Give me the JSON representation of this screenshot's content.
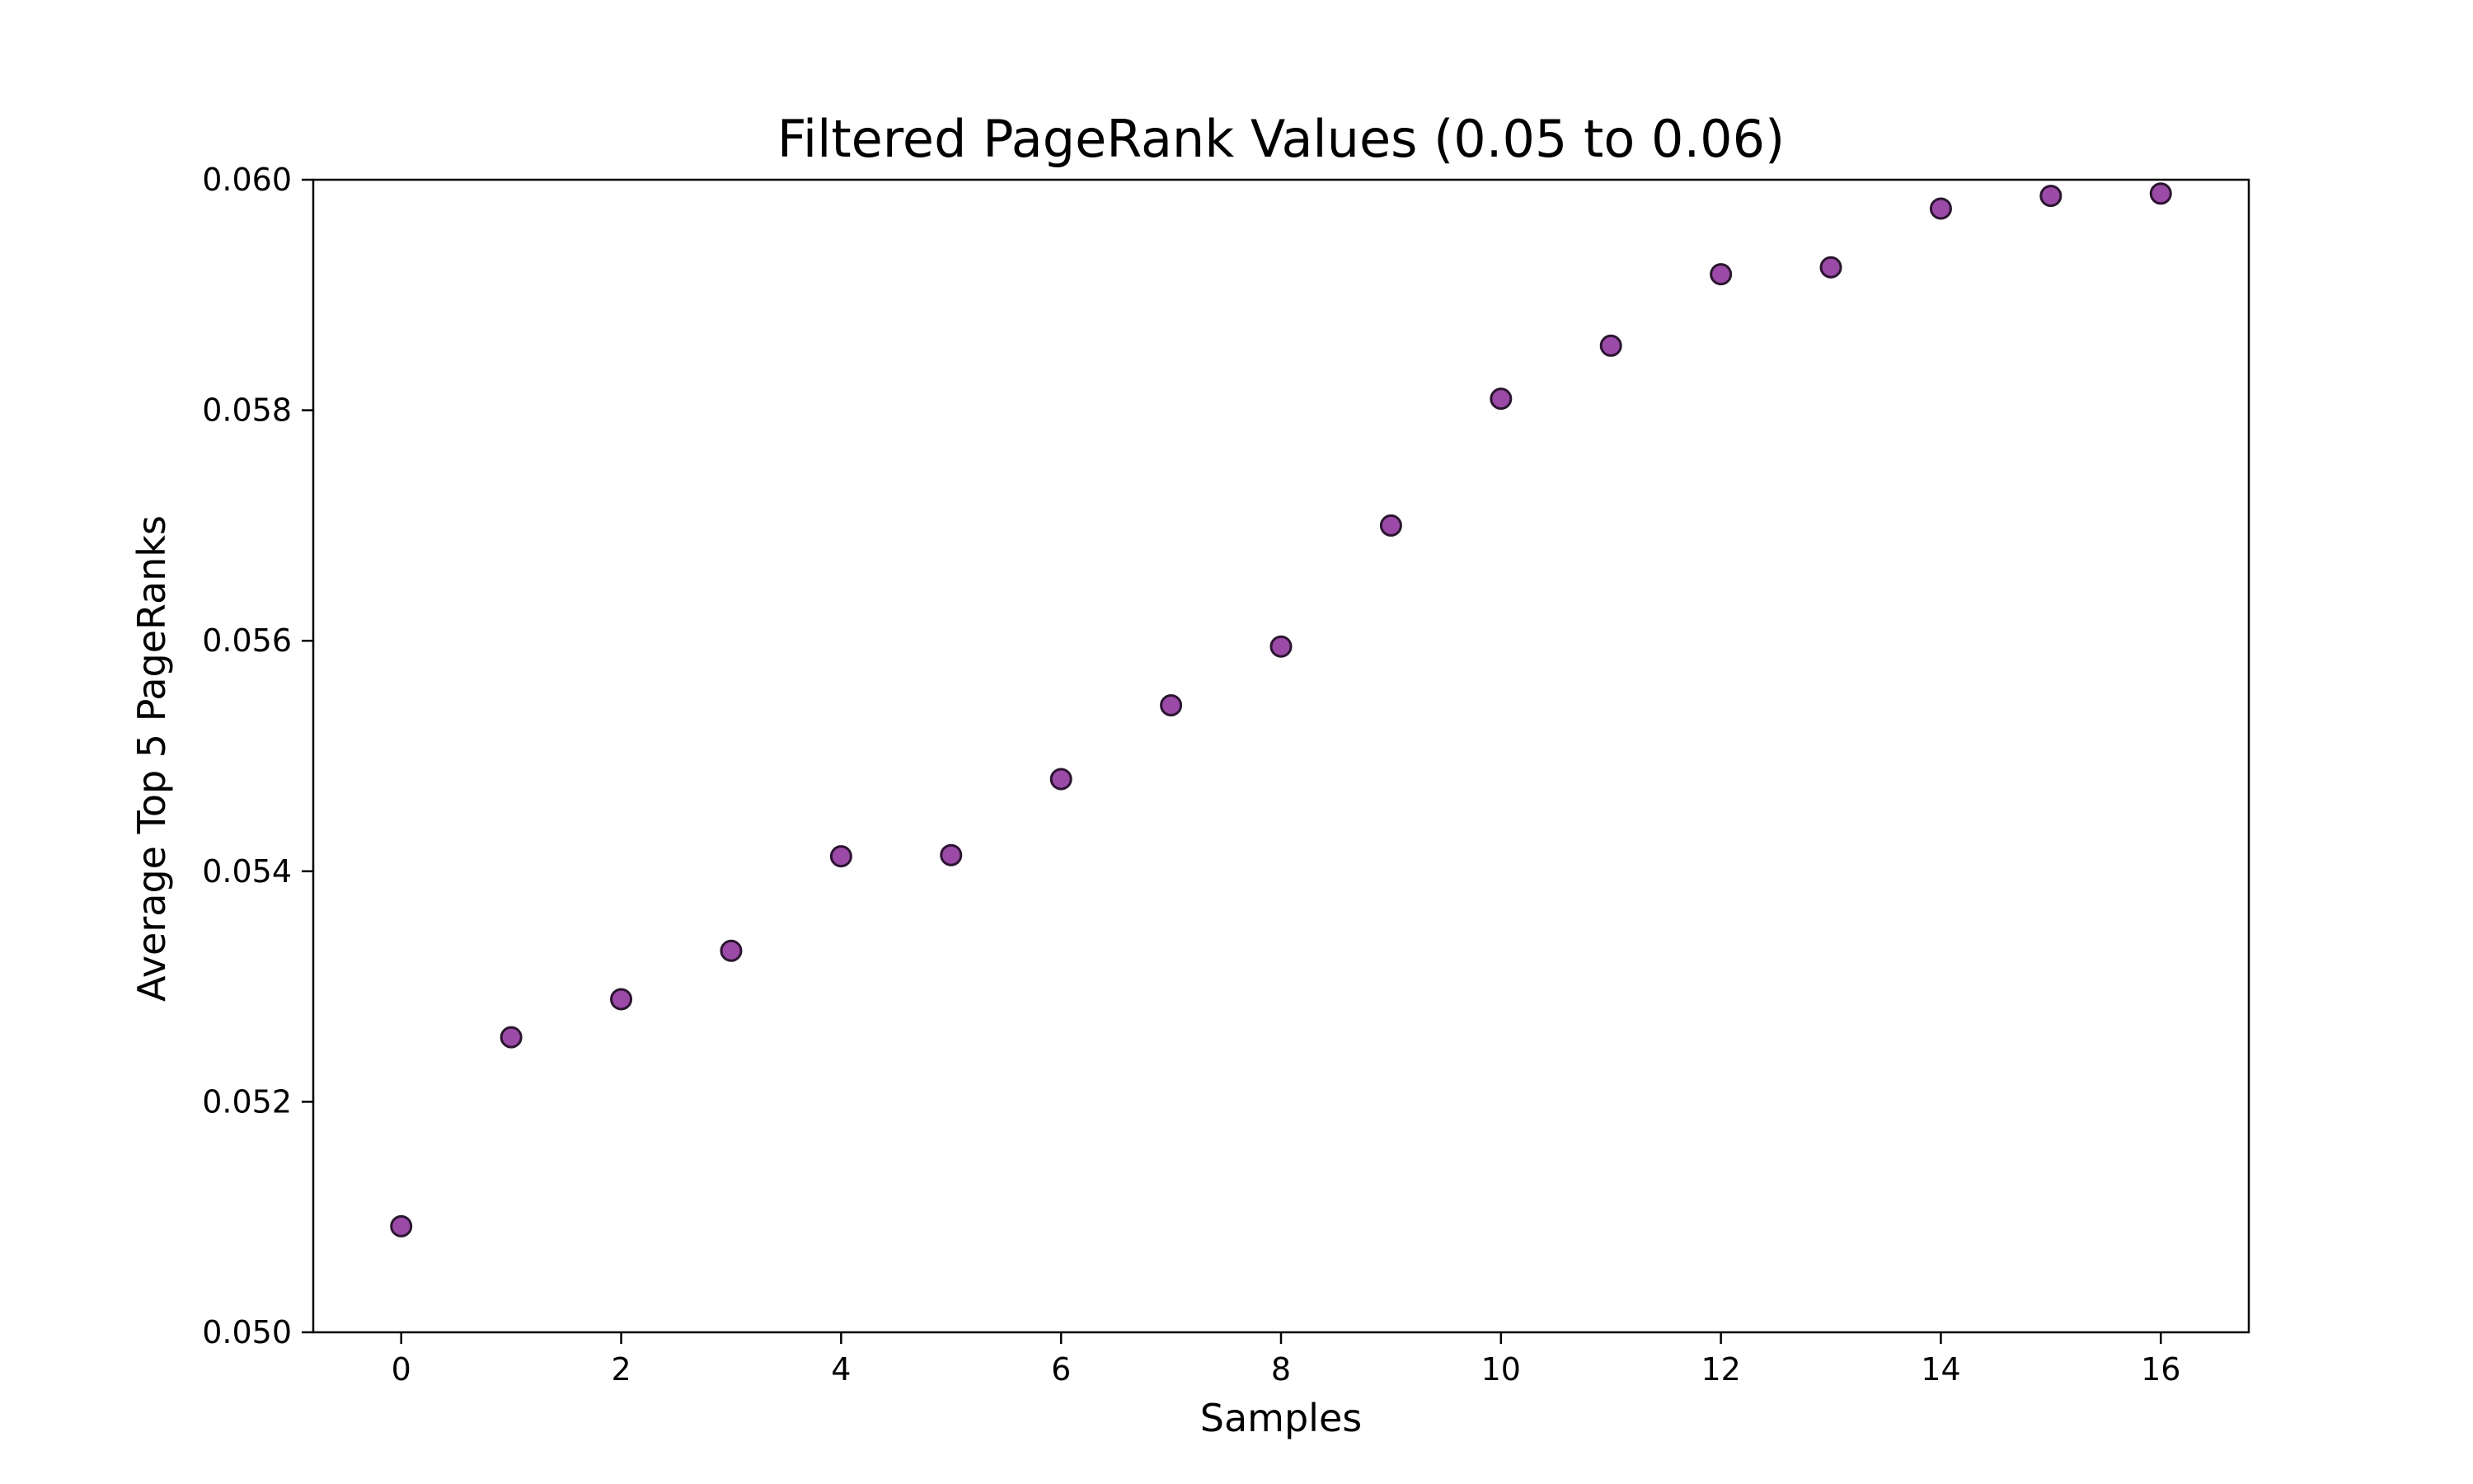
{
  "chart_data": {
    "type": "scatter",
    "title": "Filtered PageRank Values (0.05 to 0.06)",
    "xlabel": "Samples",
    "ylabel": "Average Top 5 PageRanks",
    "xlim": [
      -0.8,
      16.8
    ],
    "ylim": [
      0.05,
      0.06
    ],
    "x_ticks": [
      0,
      2,
      4,
      6,
      8,
      10,
      12,
      14,
      16
    ],
    "x_tick_labels": [
      "0",
      "2",
      "4",
      "6",
      "8",
      "10",
      "12",
      "14",
      "16"
    ],
    "y_ticks": [
      0.05,
      0.052,
      0.054,
      0.056,
      0.058,
      0.06
    ],
    "y_tick_labels": [
      "0.050",
      "0.052",
      "0.054",
      "0.056",
      "0.058",
      "0.060"
    ],
    "grid": false,
    "marker_fill": "#9b4ba7",
    "marker_edge": "#2b1530",
    "x": [
      0,
      1,
      2,
      3,
      4,
      5,
      6,
      7,
      8,
      9,
      10,
      11,
      12,
      13,
      14,
      15,
      16
    ],
    "y": [
      0.05092,
      0.05256,
      0.05289,
      0.05331,
      0.05413,
      0.05414,
      0.0548,
      0.05544,
      0.05595,
      0.057,
      0.0581,
      0.05856,
      0.05918,
      0.05924,
      0.05975,
      0.05986,
      0.05988
    ]
  }
}
